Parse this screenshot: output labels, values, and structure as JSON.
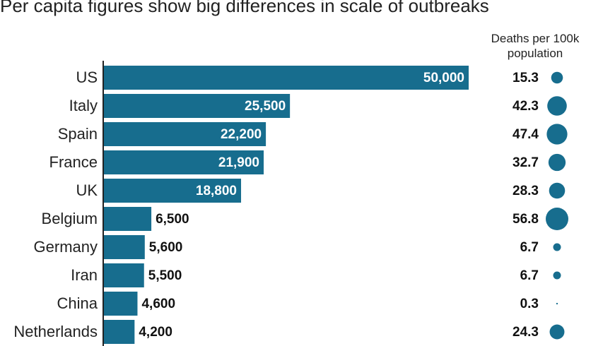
{
  "chart_data": {
    "type": "bar",
    "title": "Per capita figures show big differences in scale of outbreaks",
    "categories": [
      "US",
      "Italy",
      "Spain",
      "France",
      "UK",
      "Belgium",
      "Germany",
      "Iran",
      "China",
      "Netherlands"
    ],
    "values": [
      50000,
      25500,
      22200,
      21900,
      18800,
      6500,
      5600,
      5500,
      4600,
      4200
    ],
    "value_labels": [
      "50,000",
      "25,500",
      "22,200",
      "21,900",
      "18,800",
      "6,500",
      "5,600",
      "5,500",
      "4,600",
      "4,200"
    ],
    "color": "#176d8e",
    "bubble_series": {
      "name": "Deaths per 100k population",
      "color": "#176d8e",
      "values": [
        15.3,
        42.3,
        47.4,
        32.7,
        28.3,
        56.8,
        6.7,
        6.7,
        0.3,
        24.3
      ]
    }
  }
}
